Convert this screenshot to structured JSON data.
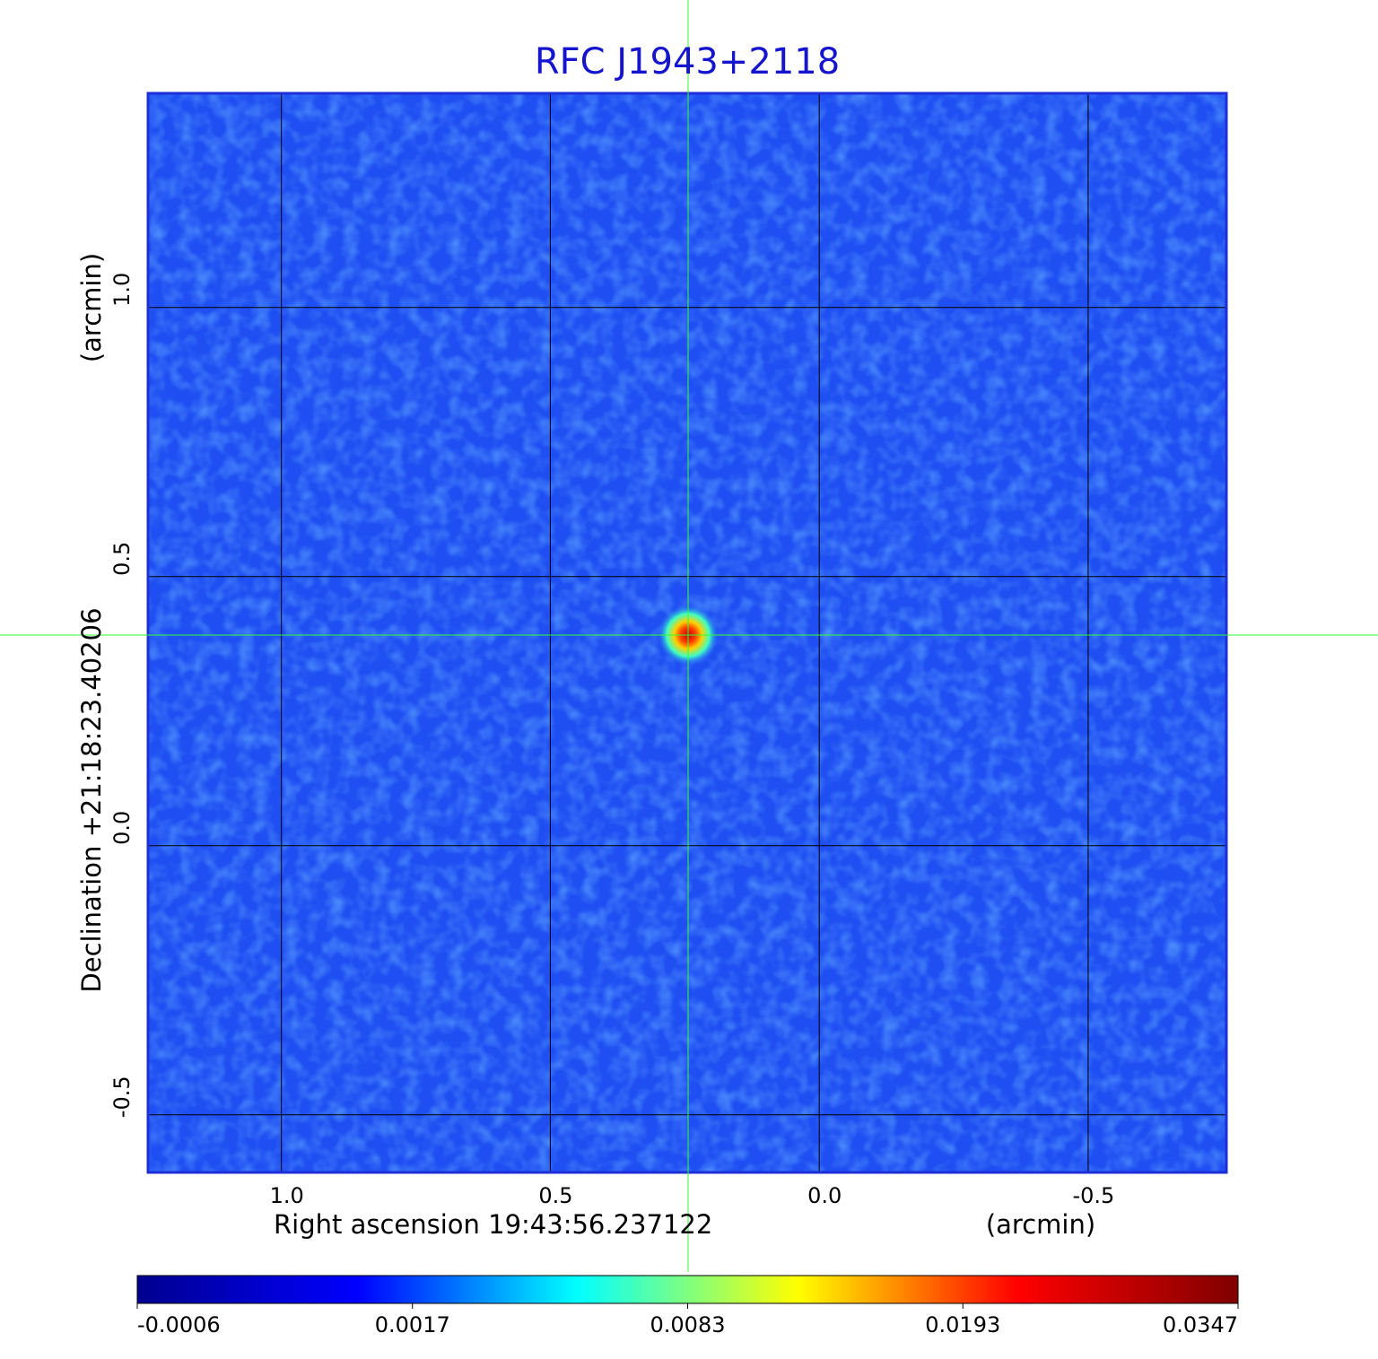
{
  "chart_data": {
    "type": "image",
    "title": "RFC J1943+2118",
    "x_label": "Right ascension  19:43:56.237122",
    "x_unit": "(arcmin)",
    "y_label": "Declination  +21:18:23.40206",
    "y_unit": "(arcmin)",
    "xlim": [
      1.248,
      -0.757
    ],
    "ylim": [
      -0.607,
      1.398
    ],
    "xticks": [
      {
        "value": 1,
        "label": "1.0"
      },
      0.5,
      {
        "value": 0,
        "label": "0.0"
      },
      -0.5
    ],
    "yticks": [
      -0.5,
      {
        "value": 0,
        "label": "0.0"
      },
      0.5,
      {
        "value": 1,
        "label": "1.0"
      }
    ],
    "grid": true,
    "colorbar": {
      "ticks": [
        -0.0006,
        0.0017,
        0.0083,
        0.0193,
        0.0347
      ],
      "colors": [
        "#00008f",
        "#0000ff",
        "#00ffff",
        "#ffff00",
        "#ff0000",
        "#800000"
      ]
    }
  }
}
